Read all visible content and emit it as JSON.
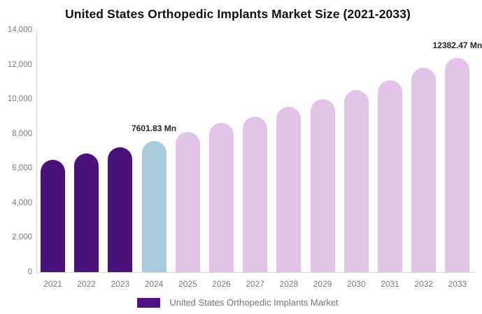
{
  "title": "United States Orthopedic Implants Market Size (2021-2033)",
  "legend": {
    "label": "United States Orthopedic Implants Market",
    "swatch_color": "#521283"
  },
  "colors": {
    "historical_bar": "#4A1179",
    "base_year_bar": "#A9CBDE",
    "forecast_bar": "#E3C4E9",
    "axis_line": "#D8D8D8",
    "axis_text": "#7A7A7A",
    "title_text": "#111111",
    "annotation_text": "#262626",
    "background": "#FFFFFF"
  },
  "chart_data": {
    "type": "bar",
    "title": "United States Orthopedic Implants Market Size (2021-2033)",
    "xlabel": "",
    "ylabel": "",
    "categories": [
      "2021",
      "2022",
      "2023",
      "2024",
      "2025",
      "2026",
      "2027",
      "2028",
      "2029",
      "2030",
      "2031",
      "2032",
      "2033"
    ],
    "values": [
      6510,
      6875,
      7240,
      7601.83,
      8130,
      8620,
      8985,
      9550,
      10000,
      10525,
      11090,
      11815,
      12382.47
    ],
    "bar_colors": [
      "#4A1179",
      "#4A1179",
      "#4A1179",
      "#A9CBDE",
      "#E3C4E9",
      "#E3C4E9",
      "#E3C4E9",
      "#E3C4E9",
      "#E3C4E9",
      "#E3C4E9",
      "#E3C4E9",
      "#E3C4E9",
      "#E3C4E9"
    ],
    "ylim": [
      0,
      14000
    ],
    "yticks": [
      {
        "value": 0,
        "label": "0"
      },
      {
        "value": 2000,
        "label": "2,000"
      },
      {
        "value": 4000,
        "label": "4,000"
      },
      {
        "value": 6000,
        "label": "6,000"
      },
      {
        "value": 8000,
        "label": "8,000"
      },
      {
        "value": 10000,
        "label": "10,000"
      },
      {
        "value": 12000,
        "label": "12,000"
      },
      {
        "value": 14000,
        "label": "14,000"
      }
    ],
    "grid": "off",
    "legend_position": "bottom",
    "annotations": [
      {
        "index": 3,
        "label": "7601.83 Mn"
      },
      {
        "index": 12,
        "label": "12382.47 Mn"
      }
    ]
  }
}
